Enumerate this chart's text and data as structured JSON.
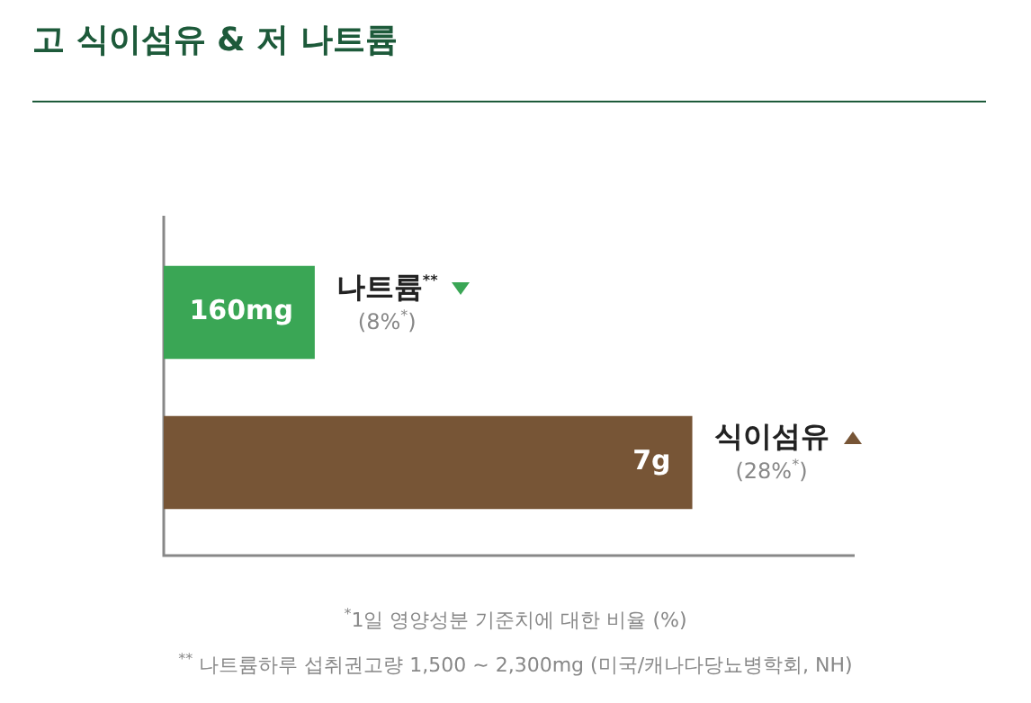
{
  "chart_data": {
    "type": "bar",
    "orientation": "horizontal",
    "xlim": [
      0,
      36.6
    ],
    "tick_labels": false,
    "title": "고 식이섬유 & 저 나트륨",
    "categories": [
      "나트륨$^{**}$",
      "식이섬유"
    ],
    "values": [
      8,
      28
    ],
    "colors": [
      "#3aa655",
      "#775536"
    ],
    "value_labels": [
      "(8%$^{*}$)",
      "(28%$^{*}$)"
    ],
    "annotations": [
      "160mg",
      "7g",
      "$^{*}$1일 영양성분 기준치에 대한 비율 (%)",
      "$^{**}$ 나트륨하루 섭취권고량 1,500 ~ 2,300mg (미국/캐나다당뇨병학회, NH)"
    ],
    "legend": false
  }
}
